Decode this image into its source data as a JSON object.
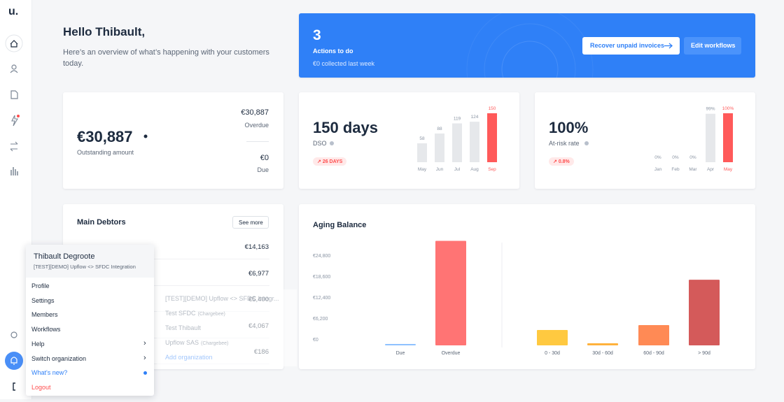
{
  "sidebar": {
    "logo": "u."
  },
  "header": {
    "greeting": "Hello Thibault,",
    "subtitle": "Here’s an overview of what’s happening with your customers today."
  },
  "actions": {
    "count": "3",
    "label": "Actions to do",
    "collected": "€0 collected last week",
    "primary_button": "Recover unpaid invoices",
    "secondary_button": "Edit workflows"
  },
  "outstanding": {
    "amount": "€30,887",
    "label": "Outstanding amount",
    "overdue_amount": "€30,887",
    "overdue_label": "Overdue",
    "due_amount": "€0",
    "due_label": "Due"
  },
  "dso": {
    "value": "150 days",
    "label": "DSO",
    "badge": "26 DAYS"
  },
  "at_risk": {
    "value": "100%",
    "label": "At-risk rate",
    "badge": "0.8%"
  },
  "debtors": {
    "title": "Main Debtors",
    "see_more": "See more",
    "amounts": [
      "€14,163",
      "€6,977",
      "€5,400",
      "€4,067",
      "€186"
    ]
  },
  "user_menu": {
    "name": "Thibault Degroote",
    "organization": "[TEST][DEMO] Upflow <> SFDC Integration",
    "items": [
      "Profile",
      "Settings",
      "Members",
      "Workflows",
      "Help",
      "Switch organization",
      "What's new?",
      "Logout"
    ]
  },
  "org_switcher": {
    "organizations": [
      {
        "name": "[TEST][DEMO] Upflow <> SFDC Integr..."
      },
      {
        "name": "Test SFDC",
        "provider": "(Chargebee)"
      },
      {
        "name": "Test Thibault"
      },
      {
        "name": "Upflow SAS",
        "provider": "(Chargebee)"
      }
    ],
    "add": "Add organization"
  },
  "chart_data": [
    {
      "type": "bar",
      "categories": [
        "May",
        "Jun",
        "Jul",
        "Aug",
        "Sep"
      ],
      "values": [
        58,
        88,
        119,
        124,
        150
      ],
      "colors": [
        "#e6e8eb",
        "#e6e8eb",
        "#e6e8eb",
        "#e6e8eb",
        "#ff5a5a"
      ],
      "ylim": [
        0,
        150
      ]
    },
    {
      "type": "bar",
      "categories": [
        "Jan",
        "Feb",
        "Mar",
        "Apr",
        "May"
      ],
      "values": [
        0,
        0,
        0,
        99,
        100
      ],
      "value_labels": [
        "0%",
        "0%",
        "0%",
        "99%",
        "100%"
      ],
      "colors": [
        "#e6e8eb",
        "#e6e8eb",
        "#e6e8eb",
        "#e6e8eb",
        "#ff5a5a"
      ],
      "ylim": [
        0,
        100
      ]
    },
    {
      "type": "bar",
      "title": "Aging Balance",
      "categories": [
        "Due",
        "Overdue",
        "0 - 30d",
        "30d - 60d",
        "60d - 90d",
        "> 90d"
      ],
      "values": [
        0,
        30887,
        4550,
        620,
        6000,
        19400
      ],
      "colors": [
        "#8fc1ff",
        "#ff7474",
        "#ffc940",
        "#ffb23d",
        "#ff8a55",
        "#d45a5a"
      ],
      "ylim": [
        0,
        31000
      ],
      "yticks": [
        {
          "value": 0,
          "label": "€0"
        },
        {
          "value": 6200,
          "label": "€6,200"
        },
        {
          "value": 12400,
          "label": "€12,400"
        },
        {
          "value": 18600,
          "label": "€18,600"
        },
        {
          "value": 24800,
          "label": "€24,800"
        }
      ]
    }
  ]
}
